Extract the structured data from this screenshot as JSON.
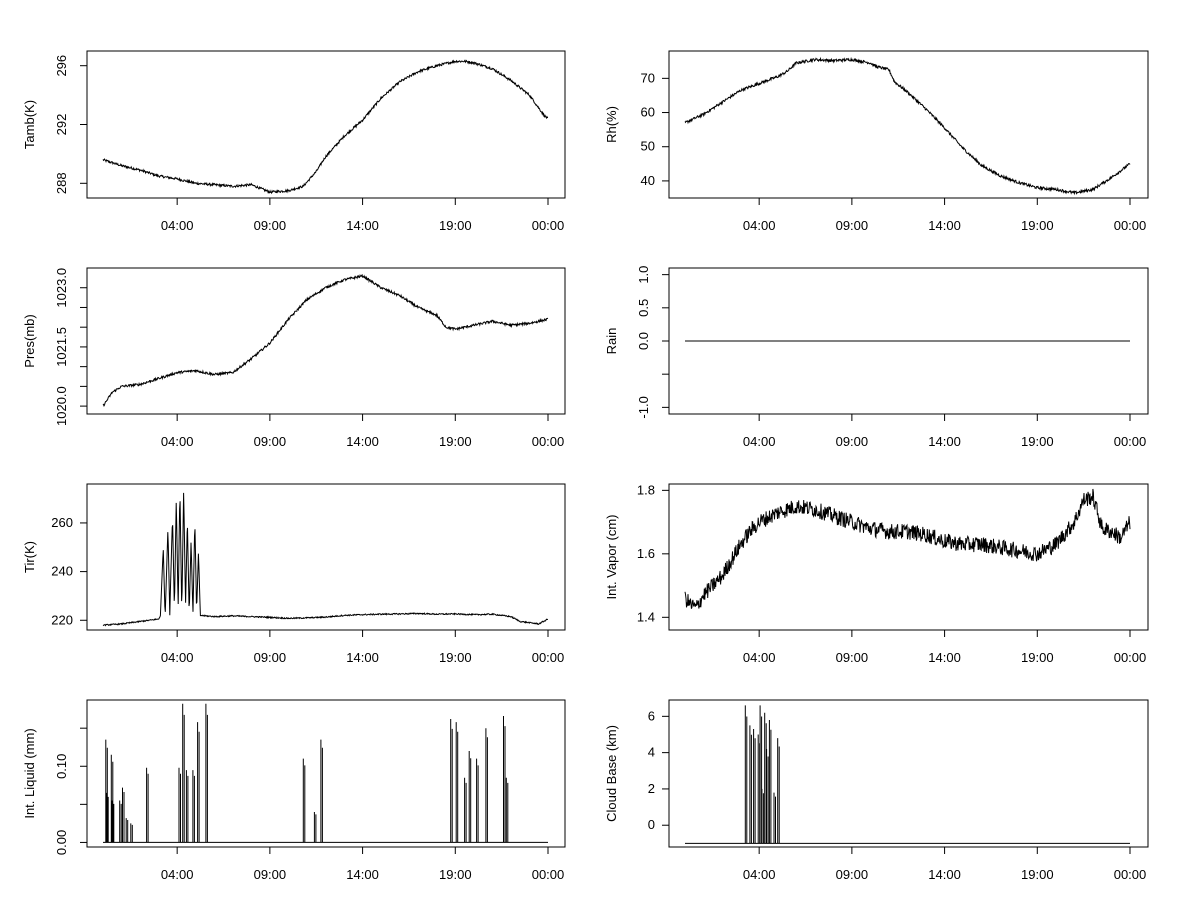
{
  "chart_data": [
    {
      "type": "line",
      "ylabel": "Tamb(K)",
      "xlabel": "",
      "xlim": [
        0,
        24
      ],
      "ylim": [
        287,
        297
      ],
      "x_ticks": [
        {
          "v": 4,
          "label": "04:00"
        },
        {
          "v": 9,
          "label": "09:00"
        },
        {
          "v": 14,
          "label": "14:00"
        },
        {
          "v": 19,
          "label": "19:00"
        },
        {
          "v": 24,
          "label": "00:00"
        }
      ],
      "y_ticks": [
        {
          "v": 288,
          "label": "288"
        },
        {
          "v": 292,
          "label": "292"
        },
        {
          "v": 296,
          "label": "296"
        }
      ],
      "y_tick_rotated": true,
      "noise": 0.08,
      "series": [
        {
          "x": [
            0,
            1,
            2,
            3,
            4,
            5,
            6,
            7,
            8,
            9,
            10,
            10.8,
            11.5,
            12,
            13,
            14,
            15,
            16,
            17,
            18,
            19,
            19.5,
            20,
            21,
            22,
            23,
            23.8,
            24
          ],
          "y": [
            289.6,
            289.2,
            288.9,
            288.5,
            288.3,
            288.0,
            287.9,
            287.8,
            287.9,
            287.4,
            287.5,
            287.8,
            288.8,
            289.8,
            291.2,
            292.3,
            293.8,
            294.9,
            295.6,
            296.0,
            296.3,
            296.3,
            296.2,
            295.8,
            295.0,
            294.0,
            292.6,
            292.4
          ]
        }
      ]
    },
    {
      "type": "line",
      "ylabel": "Rh(%)",
      "xlabel": "",
      "xlim": [
        0,
        24
      ],
      "ylim": [
        35,
        78
      ],
      "x_ticks": [
        {
          "v": 4,
          "label": "04:00"
        },
        {
          "v": 9,
          "label": "09:00"
        },
        {
          "v": 14,
          "label": "14:00"
        },
        {
          "v": 19,
          "label": "19:00"
        },
        {
          "v": 24,
          "label": "00:00"
        }
      ],
      "y_ticks": [
        {
          "v": 40,
          "label": "40"
        },
        {
          "v": 50,
          "label": "50"
        },
        {
          "v": 60,
          "label": "60"
        },
        {
          "v": 70,
          "label": "70"
        }
      ],
      "y_tick_rotated": false,
      "noise": 0.4,
      "series": [
        {
          "x": [
            0,
            1,
            2,
            3,
            4,
            5,
            5.5,
            6,
            7,
            8,
            9,
            10,
            10.3,
            11,
            11.3,
            12,
            13,
            14,
            15,
            16,
            17,
            18,
            19,
            20,
            21,
            22,
            23,
            24
          ],
          "y": [
            57.0,
            59.5,
            63.0,
            66.5,
            68.5,
            70.5,
            72.0,
            74.5,
            75.5,
            75.2,
            75.5,
            74.5,
            73.5,
            72.5,
            69.0,
            66.0,
            61.0,
            55.5,
            49.5,
            44.5,
            41.5,
            39.5,
            38.0,
            37.5,
            36.5,
            37.5,
            41.0,
            45.0
          ]
        }
      ]
    },
    {
      "type": "line",
      "ylabel": "Pres(mb)",
      "xlabel": "",
      "xlim": [
        0,
        24
      ],
      "ylim": [
        1019.8,
        1023.5
      ],
      "x_ticks": [
        {
          "v": 4,
          "label": "04:00"
        },
        {
          "v": 9,
          "label": "09:00"
        },
        {
          "v": 14,
          "label": "14:00"
        },
        {
          "v": 19,
          "label": "19:00"
        },
        {
          "v": 24,
          "label": "00:00"
        }
      ],
      "y_ticks": [
        {
          "v": 1020.0,
          "label": "1020.0"
        },
        {
          "v": 1020.5,
          "label": ""
        },
        {
          "v": 1021.0,
          "label": ""
        },
        {
          "v": 1021.5,
          "label": "1021.5"
        },
        {
          "v": 1022.0,
          "label": ""
        },
        {
          "v": 1022.5,
          "label": ""
        },
        {
          "v": 1023.0,
          "label": "1023.0"
        }
      ],
      "y_tick_rotated": true,
      "noise": 0.03,
      "series": [
        {
          "x": [
            0,
            0.5,
            1,
            2,
            3,
            4,
            5,
            6,
            7,
            8,
            9,
            10,
            11,
            12,
            13,
            14,
            15,
            16,
            17,
            18,
            18.5,
            19,
            20,
            21,
            22,
            23,
            24
          ],
          "y": [
            1020.0,
            1020.35,
            1020.5,
            1020.55,
            1020.7,
            1020.85,
            1020.9,
            1020.8,
            1020.85,
            1021.2,
            1021.6,
            1022.2,
            1022.7,
            1023.0,
            1023.2,
            1023.3,
            1023.0,
            1022.8,
            1022.5,
            1022.3,
            1022.0,
            1021.95,
            1022.05,
            1022.15,
            1022.05,
            1022.1,
            1022.2
          ]
        }
      ]
    },
    {
      "type": "line",
      "ylabel": "Rain",
      "xlabel": "",
      "xlim": [
        0,
        24
      ],
      "ylim": [
        -1.1,
        1.1
      ],
      "x_ticks": [
        {
          "v": 4,
          "label": "04:00"
        },
        {
          "v": 9,
          "label": "09:00"
        },
        {
          "v": 14,
          "label": "14:00"
        },
        {
          "v": 19,
          "label": "19:00"
        },
        {
          "v": 24,
          "label": "00:00"
        }
      ],
      "y_ticks": [
        {
          "v": -1.0,
          "label": "-1.0"
        },
        {
          "v": -0.5,
          "label": ""
        },
        {
          "v": 0.0,
          "label": "0.0"
        },
        {
          "v": 0.5,
          "label": "0.5"
        },
        {
          "v": 1.0,
          "label": "1.0"
        }
      ],
      "y_tick_rotated": true,
      "noise": 0,
      "series": [
        {
          "x": [
            0,
            24
          ],
          "y": [
            0,
            0
          ]
        }
      ]
    },
    {
      "type": "line",
      "ylabel": "Tir(K)",
      "xlabel": "",
      "xlim": [
        0,
        24
      ],
      "ylim": [
        216,
        276
      ],
      "x_ticks": [
        {
          "v": 4,
          "label": "04:00"
        },
        {
          "v": 9,
          "label": "09:00"
        },
        {
          "v": 14,
          "label": "14:00"
        },
        {
          "v": 19,
          "label": "19:00"
        },
        {
          "v": 24,
          "label": "00:00"
        }
      ],
      "y_ticks": [
        {
          "v": 220,
          "label": "220"
        },
        {
          "v": 240,
          "label": "240"
        },
        {
          "v": 260,
          "label": "260"
        }
      ],
      "y_tick_rotated": false,
      "noise": 0.25,
      "series": [
        {
          "x": [
            0,
            1,
            2,
            3.0,
            3.1,
            3.25,
            3.35,
            3.5,
            3.6,
            3.75,
            3.85,
            3.95,
            4.05,
            4.15,
            4.25,
            4.35,
            4.45,
            4.55,
            4.65,
            4.75,
            4.85,
            4.95,
            5.05,
            5.15,
            5.25,
            6,
            7,
            8,
            9,
            10,
            11,
            12,
            13,
            14,
            15,
            16,
            17,
            18,
            19,
            20,
            21,
            22,
            22.5,
            23,
            23.5,
            24
          ],
          "y": [
            218,
            218.5,
            219.5,
            220.5,
            222,
            250,
            221,
            258,
            222,
            263,
            224,
            270,
            225,
            274,
            223,
            274,
            226,
            262,
            222,
            253,
            222,
            261,
            223,
            248,
            222,
            221.5,
            221.8,
            221.5,
            221.2,
            220.8,
            221.0,
            221.3,
            222.0,
            222.3,
            222.5,
            222.6,
            222.8,
            222.5,
            222.6,
            222.3,
            222.5,
            221.5,
            219.5,
            219.0,
            218.5,
            220.5
          ]
        }
      ]
    },
    {
      "type": "line",
      "ylabel": "Int. Vapor (cm)",
      "xlabel": "",
      "xlim": [
        0,
        24
      ],
      "ylim": [
        1.36,
        1.82
      ],
      "x_ticks": [
        {
          "v": 4,
          "label": "04:00"
        },
        {
          "v": 9,
          "label": "09:00"
        },
        {
          "v": 14,
          "label": "14:00"
        },
        {
          "v": 19,
          "label": "19:00"
        },
        {
          "v": 24,
          "label": "00:00"
        }
      ],
      "y_ticks": [
        {
          "v": 1.4,
          "label": "1.4"
        },
        {
          "v": 1.6,
          "label": "1.6"
        },
        {
          "v": 1.8,
          "label": "1.8"
        }
      ],
      "y_tick_rotated": false,
      "noise": 0.025,
      "series": [
        {
          "x": [
            0,
            0.3,
            0.6,
            1,
            1.5,
            2,
            2.5,
            3,
            3.5,
            4,
            5,
            6,
            7,
            8,
            9,
            10,
            11,
            12,
            13,
            14,
            15,
            16,
            17,
            18,
            19,
            20,
            21,
            21.5,
            22,
            22.5,
            23,
            23.5,
            24
          ],
          "y": [
            1.46,
            1.44,
            1.43,
            1.47,
            1.5,
            1.53,
            1.58,
            1.63,
            1.67,
            1.7,
            1.73,
            1.75,
            1.74,
            1.72,
            1.7,
            1.68,
            1.67,
            1.67,
            1.66,
            1.64,
            1.63,
            1.63,
            1.62,
            1.61,
            1.6,
            1.63,
            1.7,
            1.77,
            1.78,
            1.68,
            1.67,
            1.65,
            1.7
          ]
        }
      ]
    },
    {
      "type": "line",
      "ylabel": "Int. Liquid (mm)",
      "xlabel": "",
      "xlim": [
        0,
        24
      ],
      "ylim": [
        -0.006,
        0.187
      ],
      "x_ticks": [
        {
          "v": 4,
          "label": "04:00"
        },
        {
          "v": 9,
          "label": "09:00"
        },
        {
          "v": 14,
          "label": "14:00"
        },
        {
          "v": 19,
          "label": "19:00"
        },
        {
          "v": 24,
          "label": "00:00"
        }
      ],
      "y_ticks": [
        {
          "v": 0.0,
          "label": "0.00"
        },
        {
          "v": 0.05,
          "label": ""
        },
        {
          "v": 0.1,
          "label": "0.10"
        },
        {
          "v": 0.15,
          "label": ""
        }
      ],
      "y_tick_rotated": true,
      "noise": 0,
      "spikes": true,
      "baseline": 0,
      "series": [
        {
          "x": [
            0.15,
            0.2,
            0.45,
            0.5,
            0.9,
            1.05,
            1.25,
            1.5,
            2.35,
            4.1,
            4.3,
            4.5,
            4.85,
            5.1,
            5.55,
            10.8,
            11.4,
            11.75,
            18.75,
            19.05,
            19.5,
            19.75,
            20.15,
            20.65,
            21.6,
            21.75
          ],
          "y": [
            0.135,
            0.065,
            0.115,
            0.055,
            0.055,
            0.072,
            0.032,
            0.025,
            0.098,
            0.098,
            0.182,
            0.095,
            0.095,
            0.158,
            0.182,
            0.11,
            0.04,
            0.135,
            0.162,
            0.158,
            0.085,
            0.12,
            0.11,
            0.15,
            0.166,
            0.085
          ]
        }
      ]
    },
    {
      "type": "line",
      "ylabel": "Cloud Base (km)",
      "xlabel": "",
      "xlim": [
        0,
        24
      ],
      "ylim": [
        -1.2,
        6.9
      ],
      "x_ticks": [
        {
          "v": 4,
          "label": "04:00"
        },
        {
          "v": 9,
          "label": "09:00"
        },
        {
          "v": 14,
          "label": "14:00"
        },
        {
          "v": 19,
          "label": "19:00"
        },
        {
          "v": 24,
          "label": "00:00"
        }
      ],
      "y_ticks": [
        {
          "v": 0,
          "label": "0"
        },
        {
          "v": 2,
          "label": "2"
        },
        {
          "v": 4,
          "label": "4"
        },
        {
          "v": 6,
          "label": "6"
        }
      ],
      "y_tick_rotated": false,
      "noise": 0,
      "spikes": true,
      "baseline": -1,
      "series": [
        {
          "x": [
            3.25,
            3.5,
            3.7,
            3.95,
            4.05,
            4.15,
            4.3,
            4.4,
            4.55,
            4.8,
            5.0
          ],
          "y": [
            6.6,
            5.5,
            5.3,
            5.0,
            6.6,
            2.0,
            6.2,
            4.2,
            5.8,
            1.8,
            4.8
          ]
        }
      ]
    }
  ]
}
